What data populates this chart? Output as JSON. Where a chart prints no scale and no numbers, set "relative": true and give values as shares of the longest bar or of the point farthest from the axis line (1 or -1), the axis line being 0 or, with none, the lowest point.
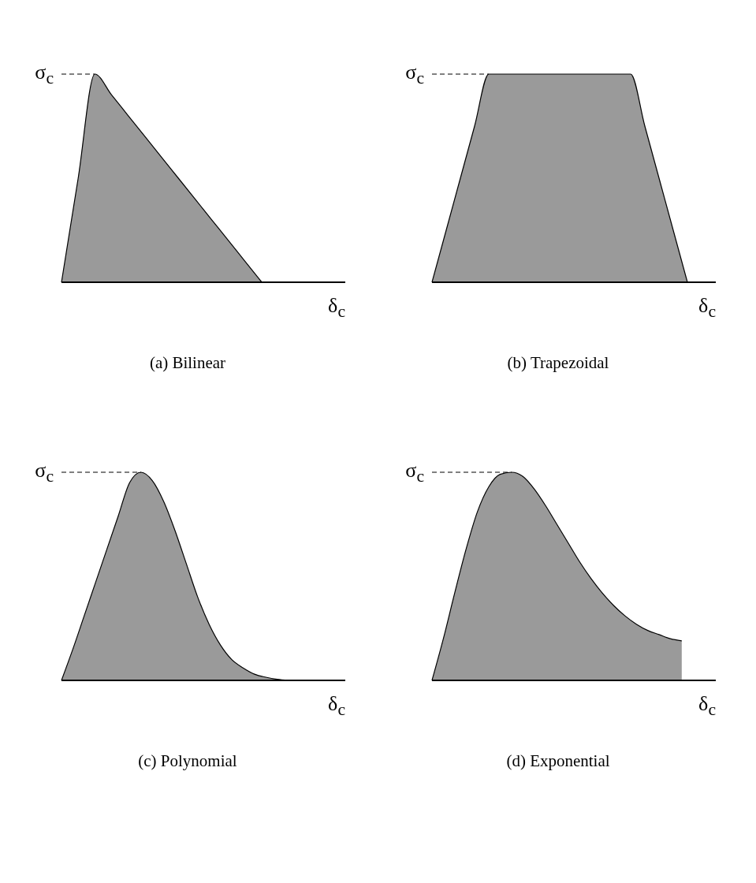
{
  "chart_data": [
    {
      "type": "area",
      "title": "(a) Bilinear",
      "relative": true,
      "xlabel": "δ$_{c}$",
      "categories": [
        null,
        null,
        null,
        null,
        null,
        null,
        null,
        null,
        null,
        null,
        null,
        null,
        null,
        null,
        null,
        null,
        null,
        null
      ],
      "series": [
        {
          "color": "#9a9a9a",
          "values": [
            0,
            0.5,
            1,
            0.9,
            0.8,
            0.7,
            0.6,
            0.5,
            0.4,
            0.3,
            0.2,
            0.1,
            0,
            null,
            null,
            null,
            null,
            null
          ]
        }
      ],
      "ref_lines": [
        {
          "axis": "y",
          "value": 1,
          "label": "σ$_{c}$",
          "line_style": "dashed"
        }
      ]
    },
    {
      "type": "area",
      "title": "(b) Trapezoidal",
      "relative": true,
      "xlabel": "δ$_{c}$",
      "categories": [
        null,
        null,
        null,
        null,
        null,
        null,
        null,
        null,
        null,
        null,
        null,
        null,
        null,
        null,
        null,
        null,
        null,
        null,
        null,
        null,
        null
      ],
      "series": [
        {
          "color": "#9a9a9a",
          "values": [
            0,
            0.25,
            0.5,
            0.75,
            1,
            1,
            1,
            1,
            1,
            1,
            1,
            1,
            1,
            1,
            1,
            0.75,
            0.5,
            0.25,
            0,
            null,
            null
          ]
        }
      ],
      "ref_lines": [
        {
          "axis": "y",
          "value": 1,
          "label": "σ$_{c}$",
          "line_style": "dashed"
        }
      ]
    },
    {
      "type": "area",
      "title": "(c)  Polynomial",
      "relative": true,
      "xlabel": "δ$_{c}$",
      "categories": [
        null,
        null,
        null,
        null,
        null,
        null,
        null,
        null,
        null,
        null,
        null,
        null,
        null,
        null,
        null,
        null,
        null,
        null,
        null,
        null,
        null,
        null,
        null,
        null,
        null,
        null
      ],
      "series": [
        {
          "color": "#9a9a9a",
          "values": [
            0,
            0.15,
            0.31,
            0.47,
            0.63,
            0.79,
            0.95,
            1,
            0.96,
            0.86,
            0.72,
            0.56,
            0.4,
            0.27,
            0.17,
            0.1,
            0.06,
            0.03,
            0.015,
            0.005,
            0,
            null,
            null,
            null,
            null,
            null
          ]
        }
      ],
      "ref_lines": [
        {
          "axis": "y",
          "value": 1,
          "label": "σ$_{c}$",
          "line_style": "dashed"
        }
      ]
    },
    {
      "type": "area",
      "title": "(d) Exponential",
      "relative": true,
      "xlabel": "δ$_{c}$",
      "categories": [
        null,
        null,
        null,
        null,
        null,
        null,
        null,
        null,
        null,
        null,
        null,
        null,
        null,
        null,
        null,
        null,
        null,
        null,
        null,
        null,
        null,
        null,
        null,
        null,
        null,
        null
      ],
      "series": [
        {
          "color": "#9a9a9a",
          "values": [
            0,
            0.2,
            0.42,
            0.63,
            0.81,
            0.93,
            0.99,
            1,
            0.98,
            0.92,
            0.84,
            0.75,
            0.66,
            0.57,
            0.49,
            0.42,
            0.36,
            0.31,
            0.27,
            0.24,
            0.22,
            0.2,
            0.19,
            null,
            null,
            null
          ]
        }
      ],
      "ref_lines": [
        {
          "axis": "y",
          "value": 1,
          "label": "σ$_{c}$",
          "line_style": "dashed"
        }
      ]
    }
  ]
}
